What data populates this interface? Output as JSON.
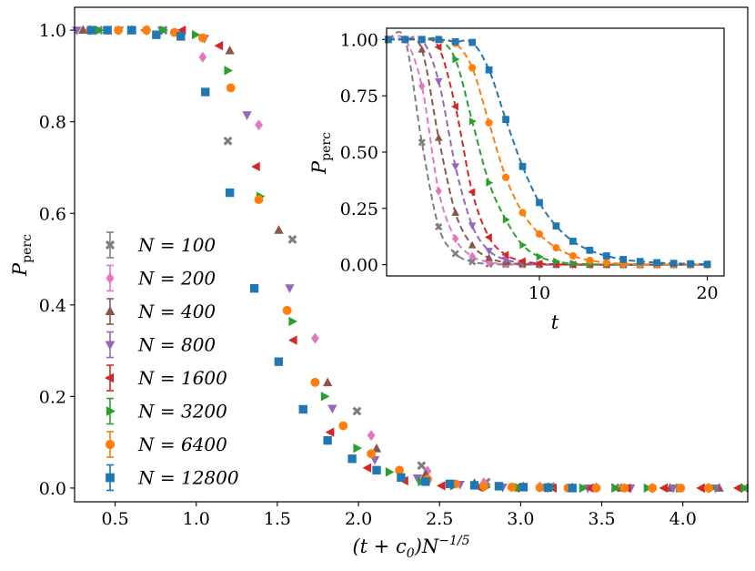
{
  "colors": {
    "N100": "#7f7f7f",
    "N200": "#e377c2",
    "N400": "#8c564b",
    "N800": "#9467bd",
    "N1600": "#d62728",
    "N3200": "#2ca02c",
    "N6400": "#ff7f0e",
    "N12800": "#1f77b4"
  },
  "chart_data": [
    {
      "id": "main",
      "type": "scatter",
      "title": "",
      "xlabel": "(t + c₀)N⁻¹ᐟ⁵",
      "ylabel": "P_perc",
      "xlabel_main": "(t + c",
      "xlabel_sub": "0",
      "xlabel_tail": ")N",
      "xlabel_sup": "−1/5",
      "ylabel_main": "P",
      "ylabel_sub": "perc",
      "xlim": [
        0.25,
        4.4
      ],
      "ylim": [
        -0.03,
        1.05
      ],
      "xticks": [
        0.5,
        1.0,
        1.5,
        2.0,
        2.5,
        3.0,
        3.5,
        4.0
      ],
      "xtick_labels": [
        "0.5",
        "1.0",
        "1.5",
        "2.0",
        "2.5",
        "3.0",
        "3.5",
        "4.0"
      ],
      "yticks": [
        0.0,
        0.2,
        0.4,
        0.6,
        0.8,
        1.0
      ],
      "ytick_labels": [
        "0.0",
        "0.2",
        "0.4",
        "0.6",
        "0.8",
        "1.0"
      ],
      "legend_position": "lower-left",
      "series": [
        {
          "name": "N = 100",
          "label": "N = 100",
          "N": 100,
          "marker": "X",
          "color": "#7f7f7f",
          "x": [
            0.398,
            0.797,
            1.195,
            1.593,
            1.991,
            2.389,
            2.788,
            3.186,
            3.584,
            3.982,
            4.38
          ],
          "y": [
            1.0,
            1.0,
            0.758,
            0.543,
            0.168,
            0.049,
            0.013,
            0.003,
            0.001,
            0.0,
            0.0
          ]
        },
        {
          "name": "N = 200",
          "label": "N = 200",
          "N": 200,
          "marker": "D",
          "color": "#e377c2",
          "x": [
            0.346,
            0.693,
            1.04,
            1.386,
            1.733,
            2.079,
            2.426,
            2.773,
            3.119,
            3.466,
            3.812,
            4.159
          ],
          "y": [
            1.0,
            1.0,
            0.941,
            0.793,
            0.327,
            0.115,
            0.037,
            0.011,
            0.003,
            0.001,
            0.0,
            0.0
          ]
        },
        {
          "name": "N = 400",
          "label": "N = 400",
          "N": 400,
          "marker": "^",
          "color": "#8c564b",
          "x": [
            0.302,
            0.603,
            0.905,
            1.207,
            1.509,
            1.81,
            2.112,
            2.414,
            2.715,
            3.017,
            3.319,
            3.62,
            3.922,
            4.224
          ],
          "y": [
            1.0,
            1.0,
            0.985,
            0.955,
            0.563,
            0.23,
            0.086,
            0.03,
            0.01,
            0.003,
            0.001,
            0.0,
            0.0,
            0.0
          ]
        },
        {
          "name": "N = 800",
          "label": "N = 800",
          "N": 800,
          "marker": "v",
          "color": "#9467bd",
          "x": [
            0.263,
            0.525,
            0.788,
            1.051,
            1.313,
            1.576,
            1.839,
            2.101,
            2.364,
            2.626,
            2.889,
            3.152,
            3.414,
            3.677,
            3.94,
            4.202
          ],
          "y": [
            1.0,
            1.0,
            1.0,
            0.982,
            0.815,
            0.437,
            0.174,
            0.062,
            0.022,
            0.008,
            0.002,
            0.001,
            0.0,
            0.0,
            0.0,
            0.0
          ]
        },
        {
          "name": "N = 1600",
          "label": "N = 1600",
          "N": 1600,
          "marker": "<",
          "color": "#d62728",
          "x": [
            0.457,
            0.686,
            0.914,
            1.143,
            1.371,
            1.6,
            1.828,
            2.057,
            2.285,
            2.514,
            2.742,
            2.971,
            3.2,
            3.428,
            3.657,
            3.885,
            4.114,
            4.342
          ],
          "y": [
            1.0,
            1.0,
            1.0,
            0.966,
            0.702,
            0.323,
            0.122,
            0.044,
            0.016,
            0.005,
            0.002,
            0.0,
            0.0,
            0.0,
            0.0,
            0.0,
            0.0,
            0.0
          ]
        },
        {
          "name": "N = 3200",
          "label": "N = 3200",
          "N": 3200,
          "marker": ">",
          "color": "#2ca02c",
          "x": [
            0.4,
            0.596,
            0.796,
            0.995,
            1.194,
            1.393,
            1.592,
            1.791,
            1.99,
            2.189,
            2.388,
            2.587,
            2.786,
            2.985,
            3.184,
            3.383,
            3.582,
            3.781,
            3.98,
            4.179,
            4.378
          ],
          "y": [
            1.0,
            1.0,
            1.0,
            0.99,
            0.912,
            0.637,
            0.364,
            0.2,
            0.087,
            0.035,
            0.014,
            0.005,
            0.002,
            0.001,
            0.0,
            0.0,
            0.0,
            0.0,
            0.0,
            0.0,
            0.0
          ]
        },
        {
          "name": "N = 6400",
          "label": "N = 6400",
          "N": 6400,
          "marker": "o",
          "color": "#ff7f0e",
          "x": [
            0.346,
            0.52,
            0.693,
            0.866,
            1.04,
            1.213,
            1.386,
            1.56,
            1.733,
            1.906,
            2.079,
            2.253,
            2.426,
            2.599,
            2.773,
            2.946,
            3.119,
            3.292,
            3.466,
            3.639,
            3.812,
            3.986,
            4.159
          ],
          "y": [
            1.0,
            1.0,
            1.0,
            0.995,
            0.983,
            0.874,
            0.63,
            0.388,
            0.231,
            0.136,
            0.075,
            0.039,
            0.019,
            0.009,
            0.004,
            0.002,
            0.001,
            0.0,
            0.0,
            0.0,
            0.0,
            0.0,
            0.0
          ]
        },
        {
          "name": "N = 12800",
          "label": "N = 12800",
          "N": 12800,
          "marker": "s",
          "color": "#1f77b4",
          "x": [
            0.352,
            0.452,
            0.603,
            0.754,
            0.905,
            1.056,
            1.207,
            1.358,
            1.508,
            1.659,
            1.81,
            1.961,
            2.112,
            2.263,
            2.414,
            2.564,
            2.715,
            2.866,
            3.017,
            3.168,
            3.319
          ],
          "y": [
            1.0,
            1.0,
            1.0,
            0.99,
            0.987,
            0.865,
            0.645,
            0.436,
            0.276,
            0.172,
            0.104,
            0.064,
            0.039,
            0.023,
            0.014,
            0.009,
            0.006,
            0.004,
            0.002,
            0.001,
            0.0
          ]
        }
      ]
    },
    {
      "id": "inset",
      "type": "line",
      "title": "",
      "xlabel": "t",
      "ylabel": "P_perc",
      "ylabel_main": "P",
      "ylabel_sub": "perc",
      "xlim": [
        0.9,
        21.0
      ],
      "ylim": [
        -0.05,
        1.05
      ],
      "xticks": [
        10,
        20
      ],
      "xtick_labels": [
        "10",
        "20"
      ],
      "yticks": [
        0.0,
        0.25,
        0.5,
        0.75,
        1.0
      ],
      "ytick_labels": [
        "0.00",
        "0.25",
        "0.50",
        "0.75",
        "1.00"
      ],
      "line_style": "dashed",
      "series": [
        {
          "name": "N = 100",
          "color": "#7f7f7f",
          "marker": "X",
          "x": [
            1,
            2,
            3,
            4,
            5,
            6,
            7,
            8,
            9,
            10,
            11,
            12,
            13,
            14,
            15,
            16,
            17,
            18,
            19,
            20
          ],
          "y": [
            1.0,
            1.0,
            0.543,
            0.168,
            0.049,
            0.013,
            0.003,
            0.001,
            0.0,
            0.0,
            0.0,
            0.0,
            0.0,
            0.0,
            0.0,
            0.0,
            0.0,
            0.0,
            0.0,
            0.0
          ]
        },
        {
          "name": "N = 200",
          "color": "#e377c2",
          "marker": "D",
          "x": [
            1,
            2,
            3,
            4,
            5,
            6,
            7,
            8,
            9,
            10,
            11,
            12,
            13,
            14,
            15,
            16,
            17,
            18,
            19,
            20
          ],
          "y": [
            1.0,
            1.0,
            0.793,
            0.327,
            0.115,
            0.037,
            0.011,
            0.003,
            0.001,
            0.0,
            0.0,
            0.0,
            0.0,
            0.0,
            0.0,
            0.0,
            0.0,
            0.0,
            0.0,
            0.0
          ]
        },
        {
          "name": "N = 400",
          "color": "#8c564b",
          "marker": "^",
          "x": [
            1,
            2,
            3,
            4,
            5,
            6,
            7,
            8,
            9,
            10,
            11,
            12,
            13,
            14,
            15,
            16,
            17,
            18,
            19,
            20
          ],
          "y": [
            1.0,
            1.0,
            0.955,
            0.563,
            0.23,
            0.086,
            0.03,
            0.01,
            0.003,
            0.001,
            0.0,
            0.0,
            0.0,
            0.0,
            0.0,
            0.0,
            0.0,
            0.0,
            0.0,
            0.0
          ]
        },
        {
          "name": "N = 800",
          "color": "#9467bd",
          "marker": "v",
          "x": [
            1,
            2,
            3,
            4,
            5,
            6,
            7,
            8,
            9,
            10,
            11,
            12,
            13,
            14,
            15,
            16,
            17,
            18,
            19,
            20
          ],
          "y": [
            1.0,
            1.0,
            1.0,
            0.815,
            0.437,
            0.174,
            0.062,
            0.022,
            0.008,
            0.002,
            0.001,
            0.0,
            0.0,
            0.0,
            0.0,
            0.0,
            0.0,
            0.0,
            0.0,
            0.0
          ]
        },
        {
          "name": "N = 1600",
          "color": "#d62728",
          "marker": "<",
          "x": [
            1,
            2,
            3,
            4,
            5,
            6,
            7,
            8,
            9,
            10,
            11,
            12,
            13,
            14,
            15,
            16,
            17,
            18,
            19,
            20
          ],
          "y": [
            1.0,
            1.0,
            1.0,
            0.966,
            0.702,
            0.323,
            0.122,
            0.044,
            0.016,
            0.005,
            0.002,
            0.0,
            0.0,
            0.0,
            0.0,
            0.0,
            0.0,
            0.0,
            0.0,
            0.0
          ]
        },
        {
          "name": "N = 3200",
          "color": "#2ca02c",
          "marker": ">",
          "x": [
            1,
            2,
            3,
            4,
            5,
            6,
            7,
            8,
            9,
            10,
            11,
            12,
            13,
            14,
            15,
            16,
            17,
            18,
            19,
            20
          ],
          "y": [
            1.0,
            1.0,
            1.0,
            1.0,
            0.912,
            0.637,
            0.364,
            0.2,
            0.087,
            0.035,
            0.014,
            0.005,
            0.002,
            0.001,
            0.0,
            0.0,
            0.0,
            0.0,
            0.0,
            0.0
          ]
        },
        {
          "name": "N = 6400",
          "color": "#ff7f0e",
          "marker": "o",
          "x": [
            1,
            2,
            3,
            4,
            5,
            6,
            7,
            8,
            9,
            10,
            11,
            12,
            13,
            14,
            15,
            16,
            17,
            18,
            19,
            20
          ],
          "y": [
            1.0,
            1.0,
            1.0,
            1.0,
            0.983,
            0.874,
            0.63,
            0.388,
            0.231,
            0.136,
            0.075,
            0.039,
            0.019,
            0.009,
            0.004,
            0.002,
            0.001,
            0.0,
            0.0,
            0.0
          ]
        },
        {
          "name": "N = 12800",
          "color": "#1f77b4",
          "marker": "s",
          "x": [
            1,
            2,
            3,
            4,
            5,
            6,
            7,
            8,
            9,
            10,
            11,
            12,
            13,
            14,
            15,
            16,
            17,
            18,
            19,
            20
          ],
          "y": [
            1.0,
            1.0,
            1.0,
            1.0,
            0.99,
            0.987,
            0.865,
            0.645,
            0.436,
            0.276,
            0.172,
            0.104,
            0.064,
            0.039,
            0.023,
            0.014,
            0.009,
            0.006,
            0.004,
            0.002
          ]
        }
      ]
    }
  ]
}
